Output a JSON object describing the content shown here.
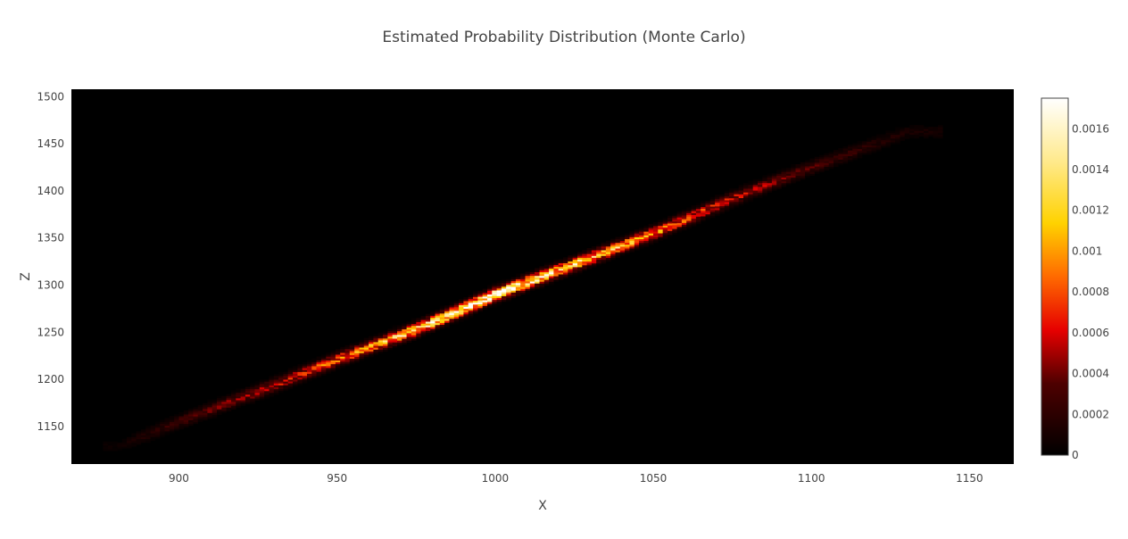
{
  "chart_data": {
    "type": "heatmap",
    "title": "Estimated Probability Distribution (Monte Carlo)",
    "xlabel": "X",
    "ylabel": "Z",
    "xlim": [
      866,
      1164
    ],
    "ylim": [
      1110,
      1508
    ],
    "x_ticks": [
      900,
      950,
      1000,
      1050,
      1100,
      1150
    ],
    "y_ticks": [
      1150,
      1200,
      1250,
      1300,
      1350,
      1400,
      1450,
      1500
    ],
    "grid": false,
    "colorscale": "hot",
    "colorbar": {
      "range": [
        0,
        0.00175
      ],
      "ticks": [
        0,
        0.0002,
        0.0004,
        0.0006,
        0.0008,
        0.001,
        0.0012,
        0.0014,
        0.0016
      ],
      "tick_labels": [
        "0",
        "0.0002",
        "0.0004",
        "0.0006",
        "0.0008",
        "0.001",
        "0.0012",
        "0.0014",
        "0.0016"
      ]
    },
    "band": {
      "description_points": [
        {
          "x": 880,
          "z": 1128,
          "density": 5e-05
        },
        {
          "x": 900,
          "z": 1155,
          "density": 0.00025
        },
        {
          "x": 925,
          "z": 1187,
          "density": 0.0005
        },
        {
          "x": 950,
          "z": 1221,
          "density": 0.0008
        },
        {
          "x": 975,
          "z": 1253,
          "density": 0.0013
        },
        {
          "x": 1000,
          "z": 1290,
          "density": 0.0017
        },
        {
          "x": 1025,
          "z": 1322,
          "density": 0.0012
        },
        {
          "x": 1050,
          "z": 1355,
          "density": 0.0009
        },
        {
          "x": 1075,
          "z": 1392,
          "density": 0.00055
        },
        {
          "x": 1100,
          "z": 1425,
          "density": 0.0003
        },
        {
          "x": 1130,
          "z": 1462,
          "density": 0.0001
        }
      ]
    }
  }
}
